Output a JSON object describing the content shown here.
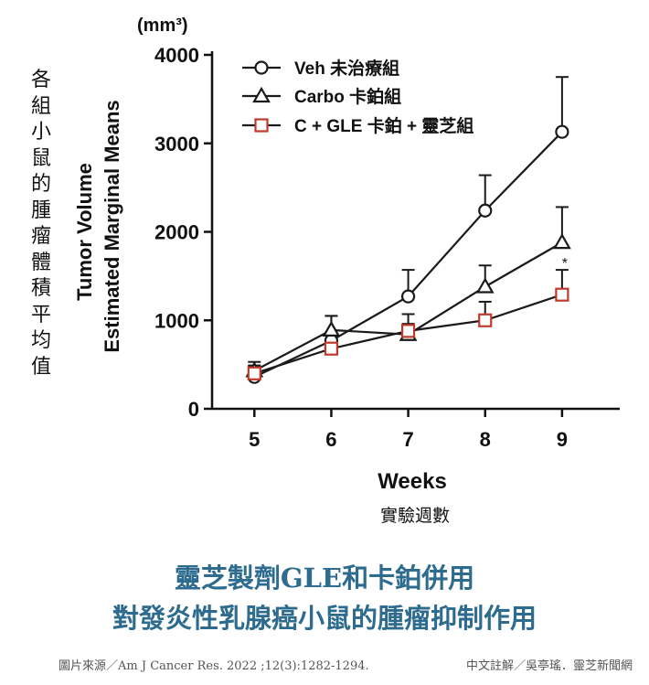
{
  "chart_data": {
    "type": "line",
    "unit_label": "(mm³)",
    "ylabel_line1": "Tumor Volume",
    "ylabel_line2": "Estimated Marginal Means",
    "ylabel_cn": "各組小鼠的腫瘤體積平均值",
    "xlabel": "Weeks",
    "xlabel_cn": "實驗週數",
    "x": [
      5,
      6,
      7,
      8,
      9
    ],
    "xlim": [
      4.45,
      9.75
    ],
    "ylim": [
      0,
      4000
    ],
    "yticks": [
      0,
      1000,
      2000,
      3000,
      4000
    ],
    "grid": false,
    "legend_position": "top-left",
    "significance_mark": "*",
    "series": [
      {
        "name": "Veh 未治療組",
        "marker": "circle",
        "color": "#1a1a1a",
        "values": [
          360,
          770,
          1270,
          2240,
          3130
        ],
        "errors": [
          130,
          280,
          300,
          400,
          620
        ]
      },
      {
        "name": "Carbo 卡鉑組",
        "marker": "triangle",
        "color": "#1a1a1a",
        "values": [
          430,
          890,
          840,
          1380,
          1880
        ],
        "errors": [
          100,
          160,
          120,
          240,
          400
        ]
      },
      {
        "name": "C + GLE 卡鉑 + 靈芝組",
        "marker": "square",
        "color": "#c0392b",
        "values": [
          400,
          680,
          880,
          1000,
          1290
        ],
        "errors": [
          80,
          100,
          190,
          210,
          280
        ]
      }
    ]
  },
  "caption": {
    "line1": "靈芝製劑GLE和卡鉑併用",
    "line2": "對發炎性乳腺癌小鼠的腫瘤抑制作用"
  },
  "footer": {
    "source": "圖片來源／Am J Cancer Res. 2022 ;12(3):1282-1294.",
    "note": "中文註解／吳亭瑤．靈芝新聞網"
  },
  "colors": {
    "caption": "#2d6b8f",
    "accent_square": "#c0392b"
  }
}
